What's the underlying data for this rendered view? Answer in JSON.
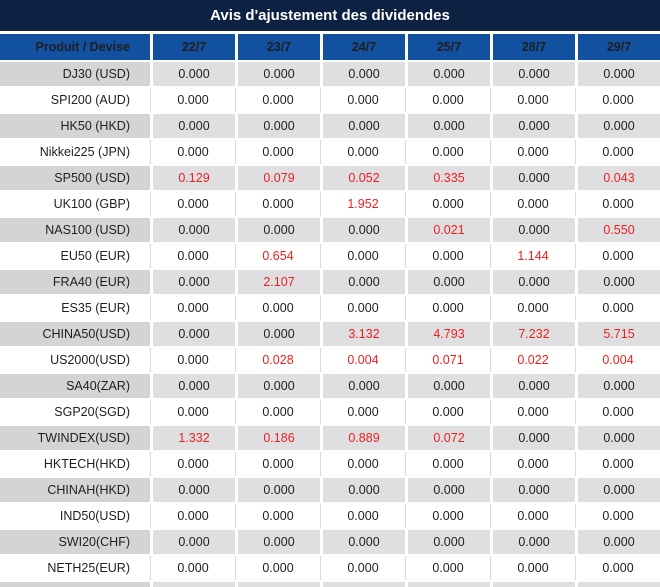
{
  "chart_data": {
    "type": "table",
    "title": "Avis d'ajustement des dividendes",
    "header": {
      "product_label": "Produit / Devise",
      "date_columns": [
        "22/7",
        "23/7",
        "24/7",
        "25/7",
        "28/7",
        "29/7"
      ]
    },
    "rows": [
      {
        "product": "DJ30 (USD)",
        "values": [
          "0.000",
          "0.000",
          "0.000",
          "0.000",
          "0.000",
          "0.000"
        ],
        "red": [
          false,
          false,
          false,
          false,
          false,
          false
        ]
      },
      {
        "product": "SPI200 (AUD)",
        "values": [
          "0.000",
          "0.000",
          "0.000",
          "0.000",
          "0.000",
          "0.000"
        ],
        "red": [
          false,
          false,
          false,
          false,
          false,
          false
        ]
      },
      {
        "product": "HK50 (HKD)",
        "values": [
          "0.000",
          "0.000",
          "0.000",
          "0.000",
          "0.000",
          "0.000"
        ],
        "red": [
          false,
          false,
          false,
          false,
          false,
          false
        ]
      },
      {
        "product": "Nikkei225 (JPN)",
        "values": [
          "0.000",
          "0.000",
          "0.000",
          "0.000",
          "0.000",
          "0.000"
        ],
        "red": [
          false,
          false,
          false,
          false,
          false,
          false
        ]
      },
      {
        "product": "SP500 (USD)",
        "values": [
          "0.129",
          "0.079",
          "0.052",
          "0.335",
          "0.000",
          "0.043"
        ],
        "red": [
          true,
          true,
          true,
          true,
          false,
          true
        ]
      },
      {
        "product": "UK100 (GBP)",
        "values": [
          "0.000",
          "0.000",
          "1.952",
          "0.000",
          "0.000",
          "0.000"
        ],
        "red": [
          false,
          false,
          true,
          false,
          false,
          false
        ]
      },
      {
        "product": "NAS100 (USD)",
        "values": [
          "0.000",
          "0.000",
          "0.000",
          "0.021",
          "0.000",
          "0.550"
        ],
        "red": [
          false,
          false,
          false,
          true,
          false,
          true
        ]
      },
      {
        "product": "EU50 (EUR)",
        "values": [
          "0.000",
          "0.654",
          "0.000",
          "0.000",
          "1.144",
          "0.000"
        ],
        "red": [
          false,
          true,
          false,
          false,
          true,
          false
        ]
      },
      {
        "product": "FRA40 (EUR)",
        "values": [
          "0.000",
          "2.107",
          "0.000",
          "0.000",
          "0.000",
          "0.000"
        ],
        "red": [
          false,
          true,
          false,
          false,
          false,
          false
        ]
      },
      {
        "product": "ES35 (EUR)",
        "values": [
          "0.000",
          "0.000",
          "0.000",
          "0.000",
          "0.000",
          "0.000"
        ],
        "red": [
          false,
          false,
          false,
          false,
          false,
          false
        ]
      },
      {
        "product": "CHINA50(USD)",
        "values": [
          "0.000",
          "0.000",
          "3.132",
          "4.793",
          "7.232",
          "5.715"
        ],
        "red": [
          false,
          false,
          true,
          true,
          true,
          true
        ]
      },
      {
        "product": "US2000(USD)",
        "values": [
          "0.000",
          "0.028",
          "0.004",
          "0.071",
          "0.022",
          "0.004"
        ],
        "red": [
          false,
          true,
          true,
          true,
          true,
          true
        ]
      },
      {
        "product": "SA40(ZAR)",
        "values": [
          "0.000",
          "0.000",
          "0.000",
          "0.000",
          "0.000",
          "0.000"
        ],
        "red": [
          false,
          false,
          false,
          false,
          false,
          false
        ]
      },
      {
        "product": "SGP20(SGD)",
        "values": [
          "0.000",
          "0.000",
          "0.000",
          "0.000",
          "0.000",
          "0.000"
        ],
        "red": [
          false,
          false,
          false,
          false,
          false,
          false
        ]
      },
      {
        "product": "TWINDEX(USD)",
        "values": [
          "1.332",
          "0.186",
          "0.889",
          "0.072",
          "0.000",
          "0.000"
        ],
        "red": [
          true,
          true,
          true,
          true,
          false,
          false
        ]
      },
      {
        "product": "HKTECH(HKD)",
        "values": [
          "0.000",
          "0.000",
          "0.000",
          "0.000",
          "0.000",
          "0.000"
        ],
        "red": [
          false,
          false,
          false,
          false,
          false,
          false
        ]
      },
      {
        "product": "CHINAH(HKD)",
        "values": [
          "0.000",
          "0.000",
          "0.000",
          "0.000",
          "0.000",
          "0.000"
        ],
        "red": [
          false,
          false,
          false,
          false,
          false,
          false
        ]
      },
      {
        "product": "IND50(USD)",
        "values": [
          "0.000",
          "0.000",
          "0.000",
          "0.000",
          "0.000",
          "0.000"
        ],
        "red": [
          false,
          false,
          false,
          false,
          false,
          false
        ]
      },
      {
        "product": "SWI20(CHF)",
        "values": [
          "0.000",
          "0.000",
          "0.000",
          "0.000",
          "0.000",
          "0.000"
        ],
        "red": [
          false,
          false,
          false,
          false,
          false,
          false
        ]
      },
      {
        "product": "NETH25(EUR)",
        "values": [
          "0.000",
          "0.000",
          "0.000",
          "0.000",
          "0.000",
          "0.000"
        ],
        "red": [
          false,
          false,
          false,
          false,
          false,
          false
        ]
      }
    ]
  },
  "colors": {
    "title_bg": "#0d2142",
    "header_bg": "#1151a0",
    "header_text": "#ffffff",
    "row_alt_product_bg": "#d4d4d6",
    "row_alt_data_bg": "#dfdfe1",
    "row_white_bg": "#ffffff",
    "gridline": "#d9d9d9",
    "text_dark": "#1f1f1f",
    "value_red": "#ef1f1f"
  }
}
